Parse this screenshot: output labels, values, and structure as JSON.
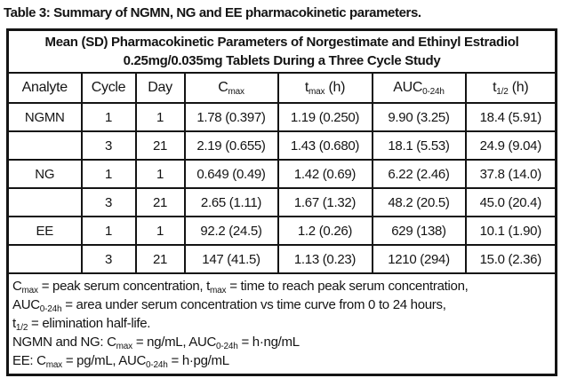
{
  "page_title": "Table 3: Summary of NGMN, NG and EE pharmacokinetic parameters.",
  "colors": {
    "text": "#141414",
    "border": "#141414",
    "background": "#ffffff"
  },
  "table": {
    "caption_line1": "Mean (SD) Pharmacokinetic Parameters of Norgestimate and Ethinyl Estradiol",
    "caption_line2": "0.25mg/0.035mg Tablets During a Three Cycle Study",
    "columns": [
      {
        "label": "Analyte",
        "segments": [
          {
            "text": "Analyte"
          }
        ]
      },
      {
        "label": "Cycle",
        "segments": [
          {
            "text": "Cycle"
          }
        ]
      },
      {
        "label": "Day",
        "segments": [
          {
            "text": "Day"
          }
        ]
      },
      {
        "label": "Cmax",
        "segments": [
          {
            "text": "C"
          },
          {
            "text": "max",
            "sub": true
          }
        ]
      },
      {
        "label": "tmax (h)",
        "segments": [
          {
            "text": "t"
          },
          {
            "text": "max",
            "sub": true
          },
          {
            "text": " (h)"
          }
        ]
      },
      {
        "label": "AUC0-24h",
        "segments": [
          {
            "text": "AUC"
          },
          {
            "text": "0-24h",
            "sub": true
          }
        ]
      },
      {
        "label": "t1/2 (h)",
        "segments": [
          {
            "text": "t"
          },
          {
            "text": "1/2",
            "sub": true
          },
          {
            "text": " (h)"
          }
        ]
      }
    ],
    "rows": [
      {
        "cells": [
          "NGMN",
          "1",
          "1",
          "1.78 (0.397)",
          "1.19 (0.250)",
          "9.90 (3.25)",
          "18.4 (5.91)"
        ]
      },
      {
        "cells": [
          "",
          "3",
          "21",
          "2.19 (0.655)",
          "1.43 (0.680)",
          "18.1 (5.53)",
          "24.9 (9.04)"
        ]
      },
      {
        "cells": [
          "NG",
          "1",
          "1",
          "0.649 (0.49)",
          "1.42 (0.69)",
          "6.22 (2.46)",
          "37.8 (14.0)"
        ]
      },
      {
        "cells": [
          "",
          "3",
          "21",
          "2.65 (1.11)",
          "1.67 (1.32)",
          "48.2 (20.5)",
          "45.0 (20.4)"
        ]
      },
      {
        "cells": [
          "EE",
          "1",
          "1",
          "92.2 (24.5)",
          "1.2 (0.26)",
          "629 (138)",
          "10.1 (1.90)"
        ]
      },
      {
        "cells": [
          "",
          "3",
          "21",
          "147 (41.5)",
          "1.13 (0.23)",
          "1210 (294)",
          "15.0 (2.36)"
        ]
      }
    ],
    "footnotes": [
      {
        "segments": [
          {
            "text": "C"
          },
          {
            "text": "max",
            "sub": true
          },
          {
            "text": " = peak serum concentration, t"
          },
          {
            "text": "max",
            "sub": true
          },
          {
            "text": " = time to reach peak serum concentration,"
          }
        ]
      },
      {
        "segments": [
          {
            "text": "AUC"
          },
          {
            "text": "0-24h",
            "sub": true
          },
          {
            "text": " = area under serum concentration vs time curve from 0 to 24 hours,"
          }
        ]
      },
      {
        "segments": [
          {
            "text": "t"
          },
          {
            "text": "1/2",
            "sub": true
          },
          {
            "text": " = elimination half-life."
          }
        ]
      },
      {
        "segments": [
          {
            "text": "NGMN and NG: C"
          },
          {
            "text": "max",
            "sub": true
          },
          {
            "text": " = ng/mL, AUC"
          },
          {
            "text": "0-24h",
            "sub": true
          },
          {
            "text": " = h·ng/mL"
          }
        ]
      },
      {
        "segments": [
          {
            "text": "EE: C"
          },
          {
            "text": "max",
            "sub": true
          },
          {
            "text": " = pg/mL, AUC"
          },
          {
            "text": "0-24h",
            "sub": true
          },
          {
            "text": " = h·pg/mL"
          }
        ]
      }
    ]
  }
}
